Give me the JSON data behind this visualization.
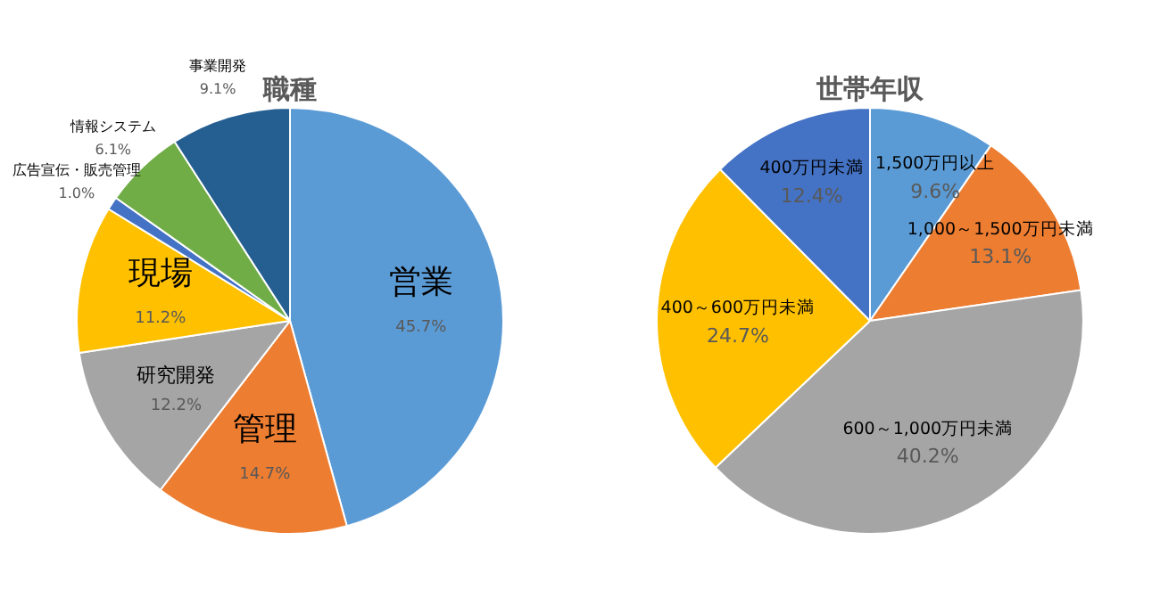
{
  "chart_data": [
    {
      "type": "pie",
      "title": "職種",
      "categories": [
        "営業",
        "管理",
        "研究開発",
        "現場",
        "広告宣伝・販売管理",
        "情報システム",
        "事業開発"
      ],
      "values": [
        45.7,
        14.7,
        12.2,
        11.2,
        1.0,
        6.1,
        9.1
      ],
      "value_labels": [
        "45.7%",
        "14.7%",
        "12.2%",
        "11.2%",
        "1.0%",
        "6.1%",
        "9.1%"
      ],
      "colors": [
        "#5b9bd5",
        "#ed7d31",
        "#a5a5a5",
        "#ffc000",
        "#4472c4",
        "#70ad47",
        "#255e91"
      ],
      "legend": false
    },
    {
      "type": "pie",
      "title": "世帯年収",
      "categories": [
        "1,500万円以上",
        "1,000～1,500万円未満",
        "600～1,000万円未満",
        "400～600万円未満",
        "400万円未満"
      ],
      "values": [
        9.6,
        13.1,
        40.2,
        24.7,
        12.4
      ],
      "value_labels": [
        "9.6%",
        "13.1%",
        "40.2%",
        "24.7%",
        "12.4%"
      ],
      "colors": [
        "#5b9bd5",
        "#ed7d31",
        "#a5a5a5",
        "#ffc000",
        "#4472c4"
      ],
      "legend": false
    }
  ]
}
